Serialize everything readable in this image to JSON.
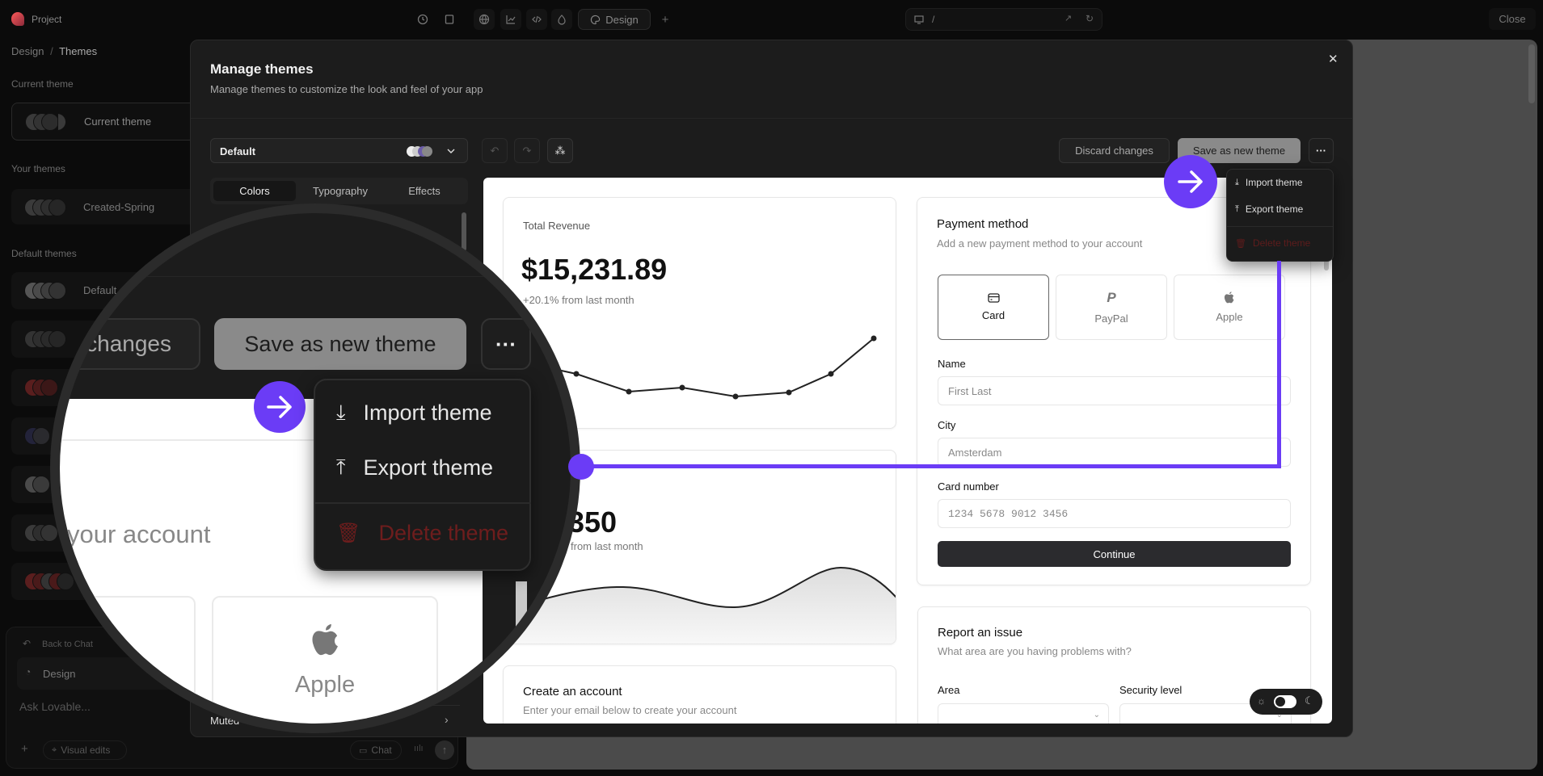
{
  "topbar": {
    "project": "Project",
    "design_tab": "Design",
    "url_path": "/",
    "close_label": "Close",
    "icons": [
      "history-icon",
      "sidebar-icon",
      "globe-icon",
      "chart-icon",
      "code-icon",
      "cloud-icon",
      "palette-icon",
      "plus-icon",
      "monitor-icon",
      "external-link-icon",
      "refresh-icon"
    ]
  },
  "sidebar": {
    "breadcrumb": {
      "parent": "Design",
      "separator": "/",
      "current": "Themes"
    },
    "current_theme_label": "Current theme",
    "current_theme": "Current theme",
    "your_themes_label": "Your themes",
    "your_themes": [
      {
        "name": "Created-Spring"
      }
    ],
    "default_themes_label": "Default themes",
    "default_themes": [
      {
        "name": "Default"
      },
      {
        "name": ""
      },
      {
        "name": ""
      },
      {
        "name": ""
      },
      {
        "name": ""
      },
      {
        "name": ""
      },
      {
        "name": ""
      }
    ],
    "chat": {
      "back": "Back to Chat",
      "mode": "Design",
      "placeholder": "Ask Lovable...",
      "visual_edits": "Visual edits",
      "chat_label": "Chat"
    }
  },
  "modal": {
    "title": "Manage themes",
    "subtitle": "Manage themes to customize the look and feel of your app",
    "theme_select": "Default",
    "tabs": [
      {
        "label": "Colors",
        "active": true
      },
      {
        "label": "Typography"
      },
      {
        "label": "Effects"
      }
    ],
    "muted_row": "Muted",
    "discard": "Discard changes",
    "save_new": "Save as new theme",
    "more": "···",
    "menu": {
      "import": "Import theme",
      "export": "Export theme",
      "delete": "Delete theme"
    }
  },
  "preview": {
    "revenue": {
      "title": "Total Revenue",
      "value": "$15,231.89",
      "change": "+20.1% from last month"
    },
    "subs": {
      "value": "350",
      "change": "from last month"
    },
    "account": {
      "title": "Create an account",
      "subtitle": "Enter your email below to create your account"
    },
    "payment": {
      "title": "Payment method",
      "subtitle": "Add a new payment method to your account",
      "methods": [
        {
          "label": "Card",
          "selected": true
        },
        {
          "label": "PayPal"
        },
        {
          "label": "Apple"
        }
      ],
      "name_label": "Name",
      "name_placeholder": "First Last",
      "city_label": "City",
      "city_placeholder": "Amsterdam",
      "card_label": "Card number",
      "card_placeholder": "1234 5678 9012 3456",
      "continue": "Continue"
    },
    "report": {
      "title": "Report an issue",
      "subtitle": "What area are you having problems with?",
      "area_label": "Area",
      "security_label": "Security level"
    },
    "dark_mode_toggle": false
  },
  "magnifier": {
    "changes": "changes",
    "your_account": "your account",
    "apple": "Apple"
  },
  "colors": {
    "accent": "#6b3cf6",
    "delete": "#7a1e1e",
    "save_bg": "#8a8a8a"
  }
}
